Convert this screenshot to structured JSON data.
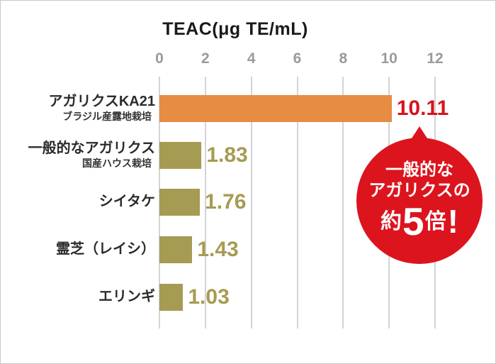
{
  "chart_data": {
    "type": "bar",
    "orientation": "horizontal",
    "title": "TEAC(μg TE/mL)",
    "xlim": [
      0,
      12
    ],
    "x_ticks": [
      0,
      2,
      4,
      6,
      8,
      10,
      12
    ],
    "x_tick_labels": [
      "0",
      "2",
      "4",
      "6",
      "8",
      "10",
      "12"
    ],
    "grid": true,
    "categories": [
      "アガリクスKA21",
      "一般的なアガリクス",
      "シイタケ",
      "霊芝（レイシ）",
      "エリンギ"
    ],
    "sublabels": [
      "ブラジル産露地栽培",
      "国産ハウス栽培",
      "",
      "",
      ""
    ],
    "values": [
      10.11,
      1.83,
      1.76,
      1.43,
      1.03
    ],
    "value_labels": [
      "10.11",
      "1.83",
      "1.76",
      "1.43",
      "1.03"
    ],
    "bar_colors": [
      "#e78c43",
      "#a69b52",
      "#a69b52",
      "#a69b52",
      "#a69b52"
    ],
    "value_colors": [
      "#d8121c",
      "#a69b52",
      "#a69b52",
      "#a69b52",
      "#a69b52"
    ]
  },
  "badge": {
    "line1": "一般的な",
    "line2": "アガリクスの",
    "line3_prefix": "約",
    "line3_big": "5",
    "line3_suffix": "倍",
    "line3_exclaim": "!",
    "background": "#dc141e",
    "text_color": "#ffffff"
  },
  "colors": {
    "grid": "#d4d4d4",
    "tick_label": "#9a9a9a",
    "title": "#1a1a1a",
    "category_label": "#2b2b2b",
    "frame_border": "#c9c9c9"
  }
}
